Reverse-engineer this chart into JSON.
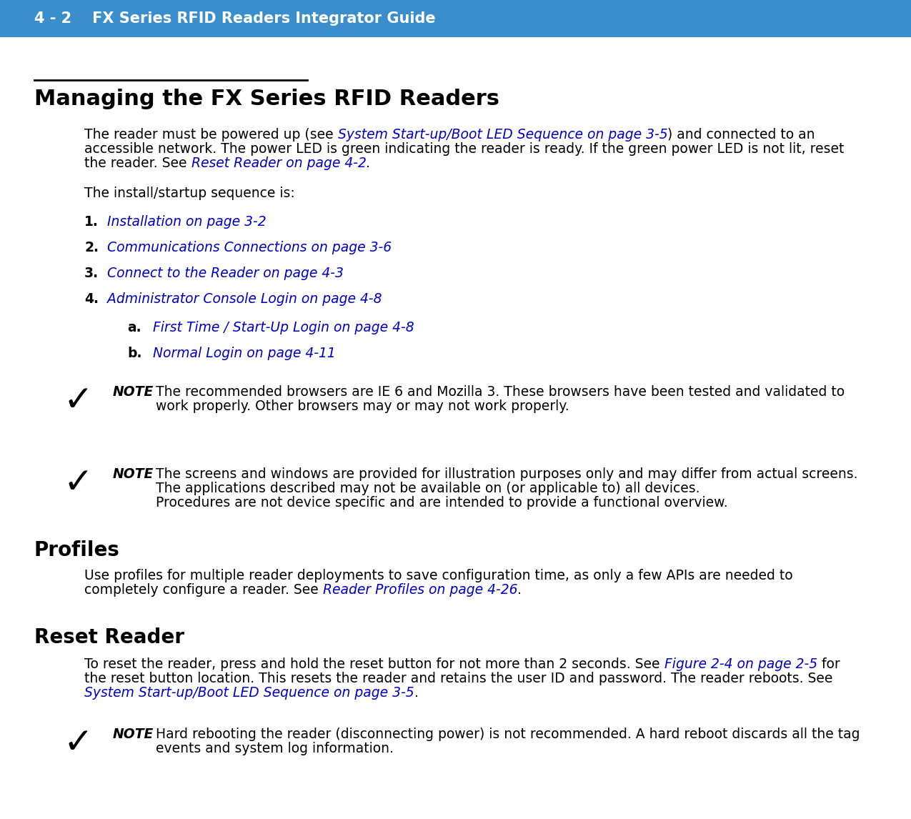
{
  "header_bg_color": "#3a8ecb",
  "header_text_color": "#ffffff",
  "header_text": "4 - 2    FX Series RFID Readers Integrator Guide",
  "header_font_size": 15,
  "bg_color": "#ffffff",
  "title": "Managing the FX Series RFID Readers",
  "title_font_size": 22,
  "title_color": "#000000",
  "link_color": "#0000cc",
  "body_color": "#000000",
  "body_font_size": 13.5,
  "note_label_font_size": 13.0,
  "section2_title": "Profiles",
  "section3_title": "Reset Reader",
  "note1_text_line1": "The recommended browsers are IE 6 and Mozilla 3. These browsers have been tested and validated to",
  "note1_text_line2": "work properly. Other browsers may or may not work properly.",
  "note2_text_line1": "The screens and windows are provided for illustration purposes only and may differ from actual screens.",
  "note2_text_line2": "The applications described may not be available on (or applicable to) all devices.",
  "note2_text_line3": "Procedures are not device specific and are intended to provide a functional overview.",
  "note3_text_line1": "Hard rebooting the reader (disconnecting power) is not recommended. A hard reboot discards all the tag",
  "note3_text_line2": "events and system log information."
}
